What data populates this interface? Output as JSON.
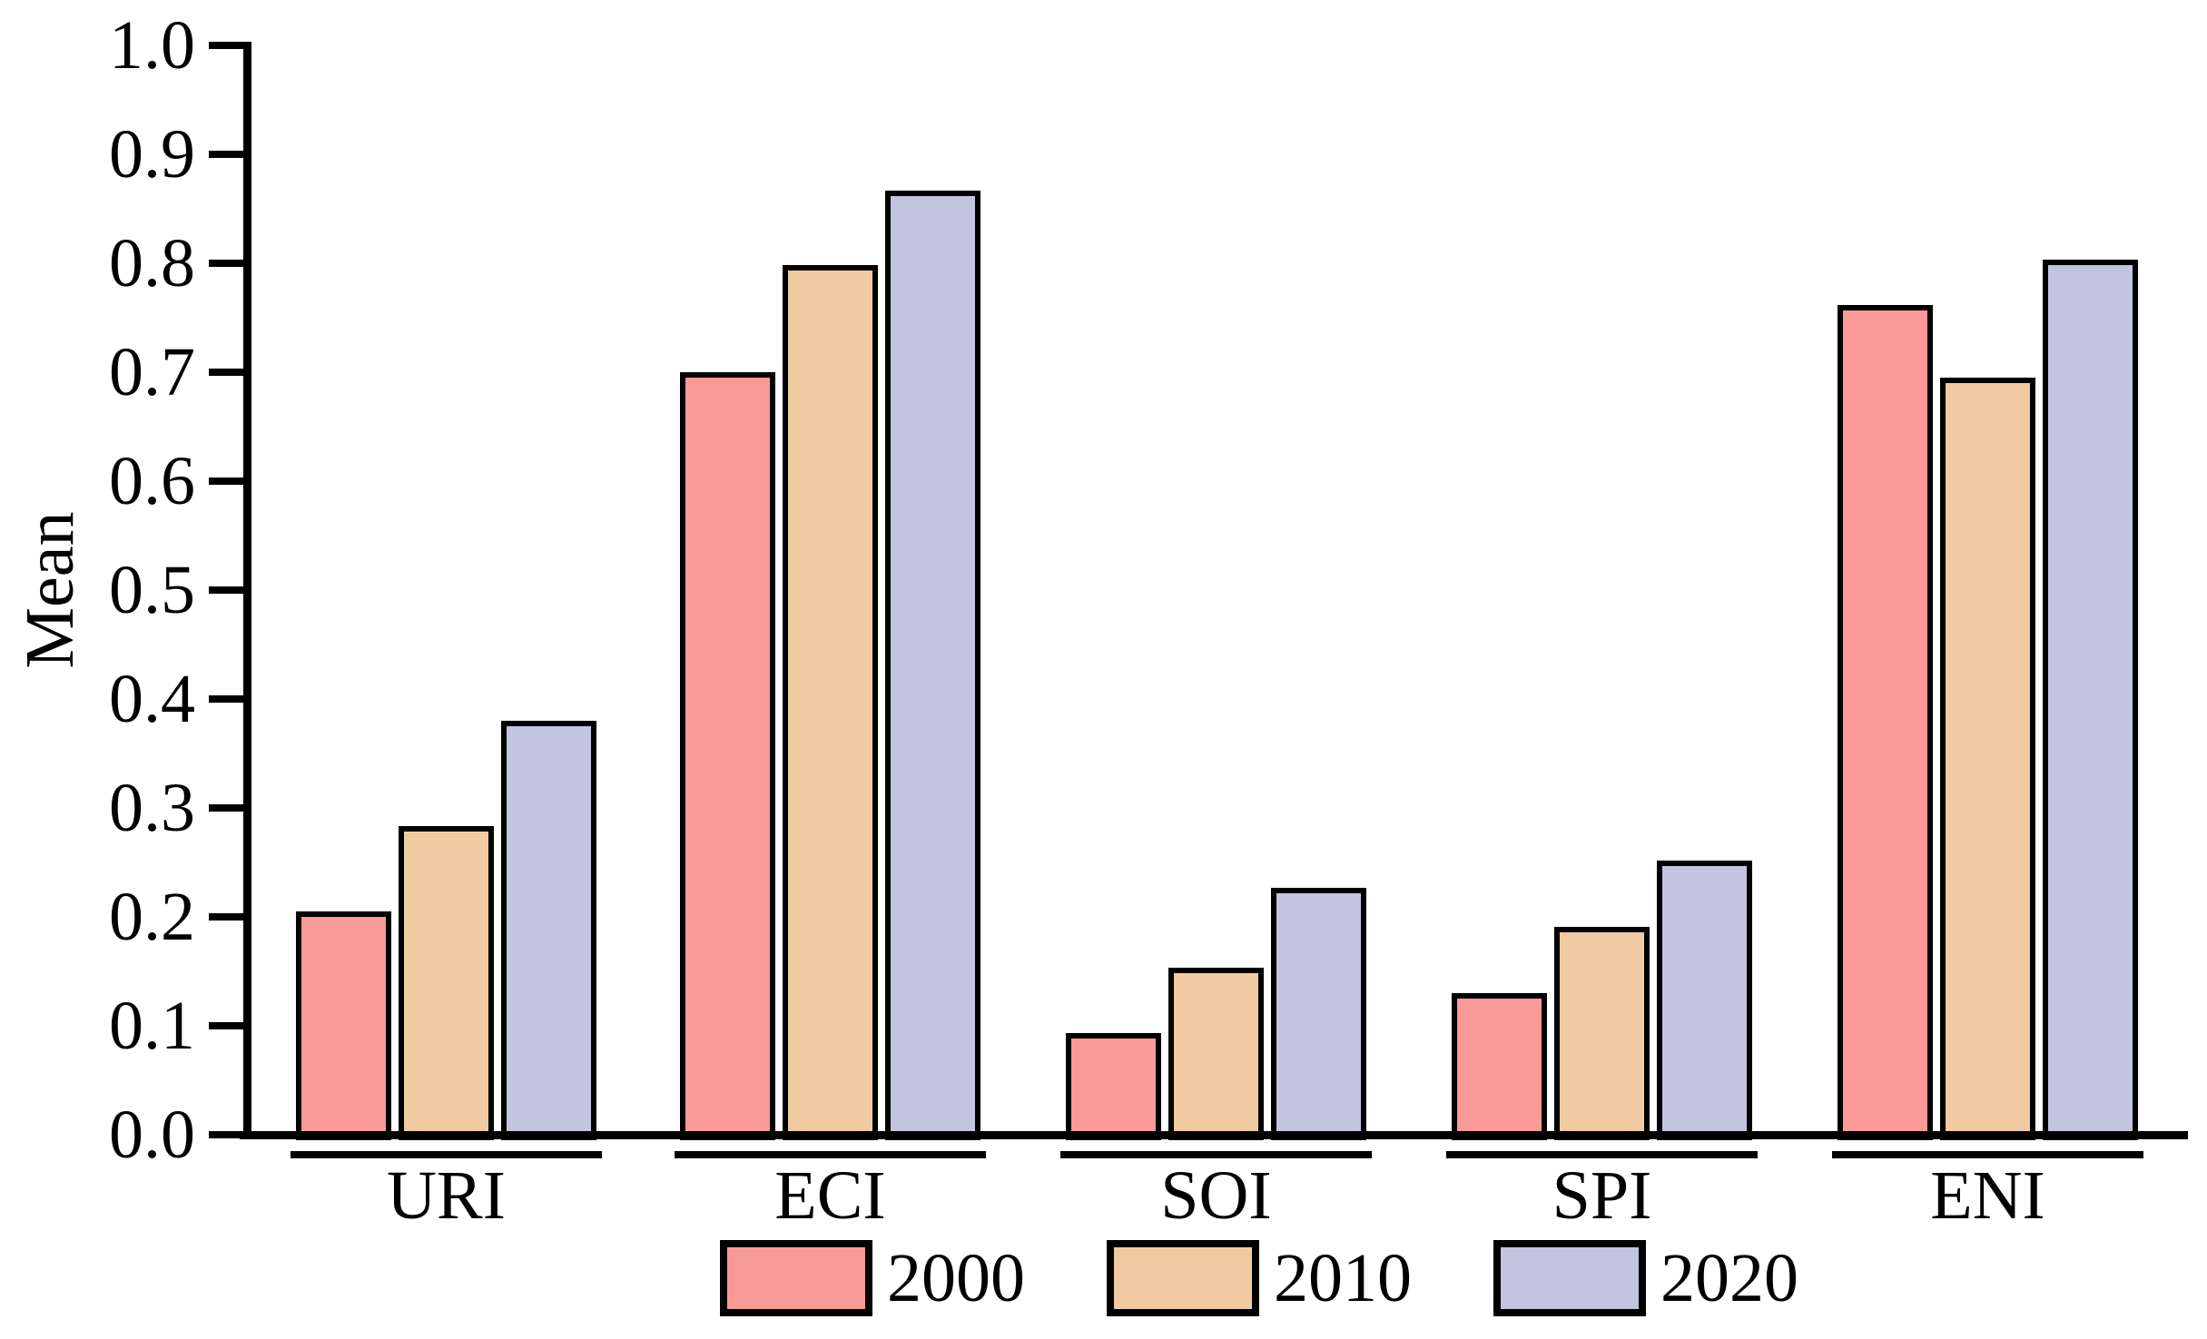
{
  "figure": {
    "background": "#ffffff",
    "text_color": "#000000"
  },
  "chart_data": {
    "type": "bar",
    "title": "",
    "xlabel": "",
    "ylabel": "Mean",
    "categories": [
      "URI",
      "ECI",
      "SOI",
      "SPI",
      "ENI"
    ],
    "series": [
      {
        "name": "2000",
        "color": "#F99998",
        "values": [
          0.2,
          0.695,
          0.088,
          0.125,
          0.757
        ]
      },
      {
        "name": "2010",
        "color": "#F0CBA1",
        "values": [
          0.278,
          0.793,
          0.148,
          0.186,
          0.69
        ]
      },
      {
        "name": "2020",
        "color": "#C3C4E0",
        "values": [
          0.375,
          0.862,
          0.222,
          0.247,
          0.798
        ]
      }
    ],
    "ylim": [
      0.0,
      1.0
    ],
    "ytick_step": 0.1,
    "ytick_labels": [
      "0.0",
      "0.1",
      "0.2",
      "0.3",
      "0.4",
      "0.5",
      "0.6",
      "0.7",
      "0.8",
      "0.9",
      "1.0"
    ],
    "grid": false,
    "legend_position": "bottom",
    "bar_outline_color": "#000000",
    "axis_color": "#000000"
  }
}
